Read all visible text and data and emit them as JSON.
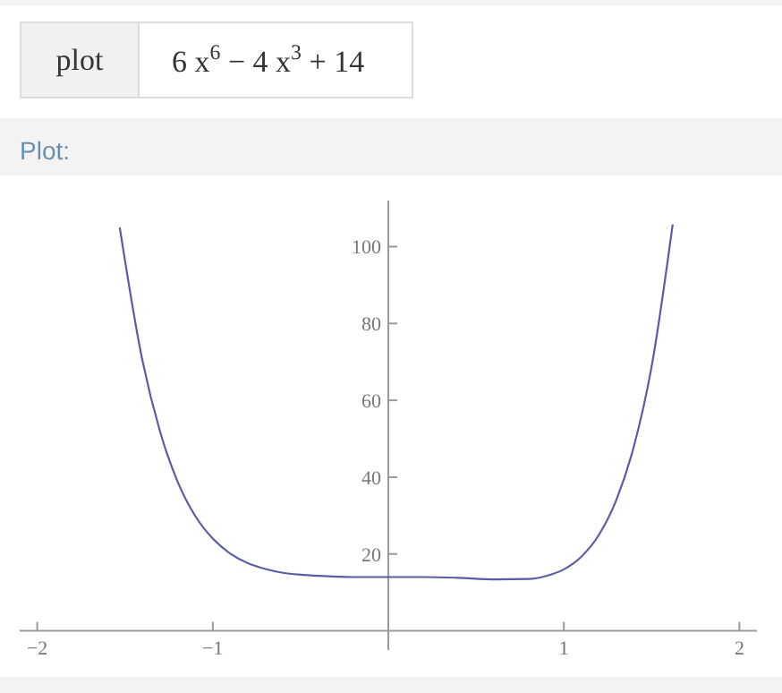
{
  "chart_data": {
    "type": "line",
    "title": "6 x$^{6}$ − 4 x$^{3}$ + 14",
    "subtitle": "Plot:",
    "annotations": [
      "plot"
    ],
    "x": [
      -1.53,
      -1.4,
      -1.3,
      -1.2,
      -1.1,
      -1,
      -0.9,
      -0.8,
      -0.7,
      -0.6,
      -0.5,
      -0.4,
      -0.2,
      0,
      0.2,
      0.4,
      0.6,
      0.8,
      0.9,
      1,
      1.1,
      1.2,
      1.3,
      1.4,
      1.5,
      1.62
    ],
    "series": [
      {
        "color": "#5b5ba8",
        "values": [
          105,
          70.2,
          51.8,
          38.8,
          29.9,
          24,
          20.1,
          17.6,
          16.1,
          15.1,
          14.6,
          14.3,
          14,
          14,
          14,
          13.8,
          13.4,
          13.5,
          14.3,
          16,
          19.3,
          25,
          34.2,
          48.2,
          68.8,
          105.8
        ]
      }
    ],
    "xlim": [
      -2.1,
      2.1
    ],
    "ylim": [
      -5,
      112
    ],
    "xticks": [
      -2,
      -1,
      1,
      2
    ],
    "yticks": [
      20,
      40,
      60,
      80,
      100
    ],
    "grid": false,
    "marker": "none",
    "line_style": "solid"
  }
}
